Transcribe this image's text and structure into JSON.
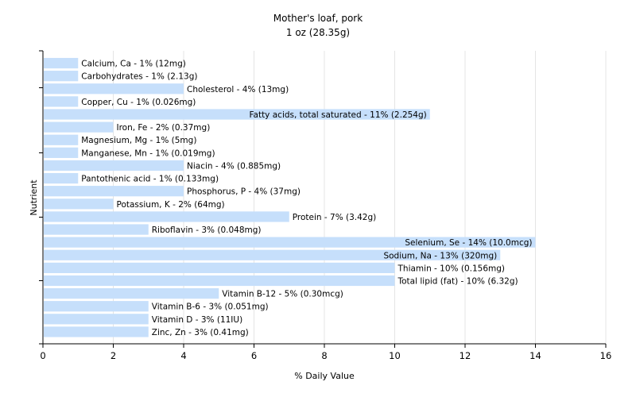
{
  "chart_data": {
    "type": "bar",
    "orientation": "horizontal",
    "title": "Mother's loaf, pork",
    "subtitle": "1 oz (28.35g)",
    "xlabel": "% Daily Value",
    "ylabel": "Nutrient",
    "xlim": [
      0,
      16
    ],
    "xticks": [
      "0",
      "2",
      "4",
      "6",
      "8",
      "10",
      "12",
      "14",
      "16"
    ],
    "grid": true,
    "bar_color": "#c6dffb",
    "categories": [
      "Calcium, Ca - 1% (12mg)",
      "Carbohydrates - 1% (2.13g)",
      "Cholesterol - 4% (13mg)",
      "Copper, Cu - 1% (0.026mg)",
      "Fatty acids, total saturated - 11% (2.254g)",
      "Iron, Fe - 2% (0.37mg)",
      "Magnesium, Mg - 1% (5mg)",
      "Manganese, Mn - 1% (0.019mg)",
      "Niacin - 4% (0.885mg)",
      "Pantothenic acid - 1% (0.133mg)",
      "Phosphorus, P - 4% (37mg)",
      "Potassium, K - 2% (64mg)",
      "Protein - 7% (3.42g)",
      "Riboflavin - 3% (0.048mg)",
      "Selenium, Se - 14% (10.0mcg)",
      "Sodium, Na - 13% (320mg)",
      "Thiamin - 10% (0.156mg)",
      "Total lipid (fat) - 10% (6.32g)",
      "Vitamin B-12 - 5% (0.30mcg)",
      "Vitamin B-6 - 3% (0.051mg)",
      "Vitamin D - 3% (11IU)",
      "Zinc, Zn - 3% (0.41mg)"
    ],
    "values": [
      1,
      1,
      4,
      1,
      11,
      2,
      1,
      1,
      4,
      1,
      4,
      2,
      7,
      3,
      14,
      13,
      10,
      10,
      5,
      3,
      3,
      3
    ]
  }
}
